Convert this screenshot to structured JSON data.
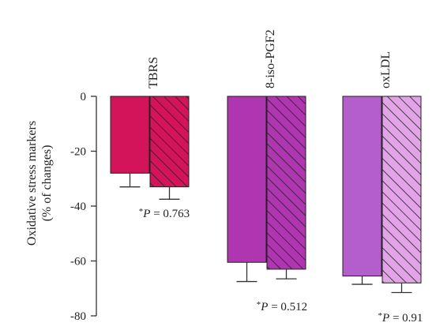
{
  "chart_data": {
    "type": "bar",
    "ylabel": [
      "Oxidative stress markers",
      "(% of changes)"
    ],
    "ylim": [
      -80,
      0
    ],
    "yticks": [
      0,
      -20,
      -40,
      -60,
      -80
    ],
    "ytick_labels": [
      "0",
      "-20",
      "-40",
      "-60",
      "-80"
    ],
    "categories": [
      "TBRS",
      "8-iso-PGF2",
      "oxLDL"
    ],
    "series": [
      {
        "fill": "solid",
        "values": [
          -28,
          -60.5,
          -65.5
        ],
        "errors": [
          5,
          7,
          3
        ]
      },
      {
        "fill": "hatched",
        "values": [
          -33,
          -63,
          -68
        ],
        "errors": [
          4.5,
          3.5,
          3.5
        ]
      }
    ],
    "colors": [
      {
        "solid": "#d4145a",
        "hatched": "#d4145a"
      },
      {
        "solid": "#b035b0",
        "hatched": "#b035b0"
      },
      {
        "solid": "#b35ecb",
        "hatched": "#e2a4e6"
      }
    ],
    "annotations": [
      {
        "prefix": "*",
        "label": "P",
        "text": " = 0.763"
      },
      {
        "prefix": "*",
        "label": "P",
        "text": " = 0.512"
      },
      {
        "prefix": "*",
        "label": "P",
        "text": " = 0.91"
      }
    ]
  }
}
